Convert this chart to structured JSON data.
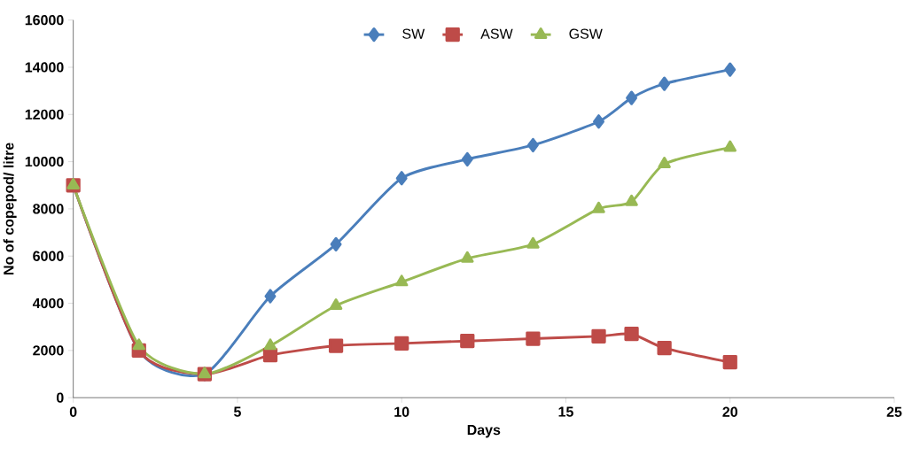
{
  "chart_data": {
    "type": "line",
    "xlabel": "Days",
    "ylabel": "No of copepod/ litre",
    "x": [
      0,
      2,
      4,
      6,
      8,
      10,
      12,
      14,
      16,
      17,
      18,
      20
    ],
    "series": [
      {
        "name": "SW",
        "color": "#4a7ebb",
        "marker": "diamond",
        "values": [
          9000,
          2000,
          1000,
          4300,
          6500,
          9300,
          10100,
          10700,
          11700,
          12700,
          13300,
          13900
        ]
      },
      {
        "name": "ASW",
        "color": "#be4b48",
        "marker": "square",
        "values": [
          9000,
          2000,
          1000,
          1800,
          2200,
          2300,
          2400,
          2500,
          2600,
          2700,
          2100,
          1500
        ]
      },
      {
        "name": "GSW",
        "color": "#98b954",
        "marker": "triangle",
        "values": [
          9000,
          2200,
          1000,
          2200,
          3900,
          4900,
          5900,
          6500,
          8000,
          8300,
          9900,
          10600
        ]
      }
    ],
    "xlim": [
      0,
      25
    ],
    "xticks": [
      0,
      5,
      10,
      15,
      20,
      25
    ],
    "ylim": [
      0,
      16000
    ],
    "yticks": [
      0,
      2000,
      4000,
      6000,
      8000,
      10000,
      12000,
      14000,
      16000
    ],
    "grid": false,
    "legend": "top",
    "line_style": "solid"
  }
}
